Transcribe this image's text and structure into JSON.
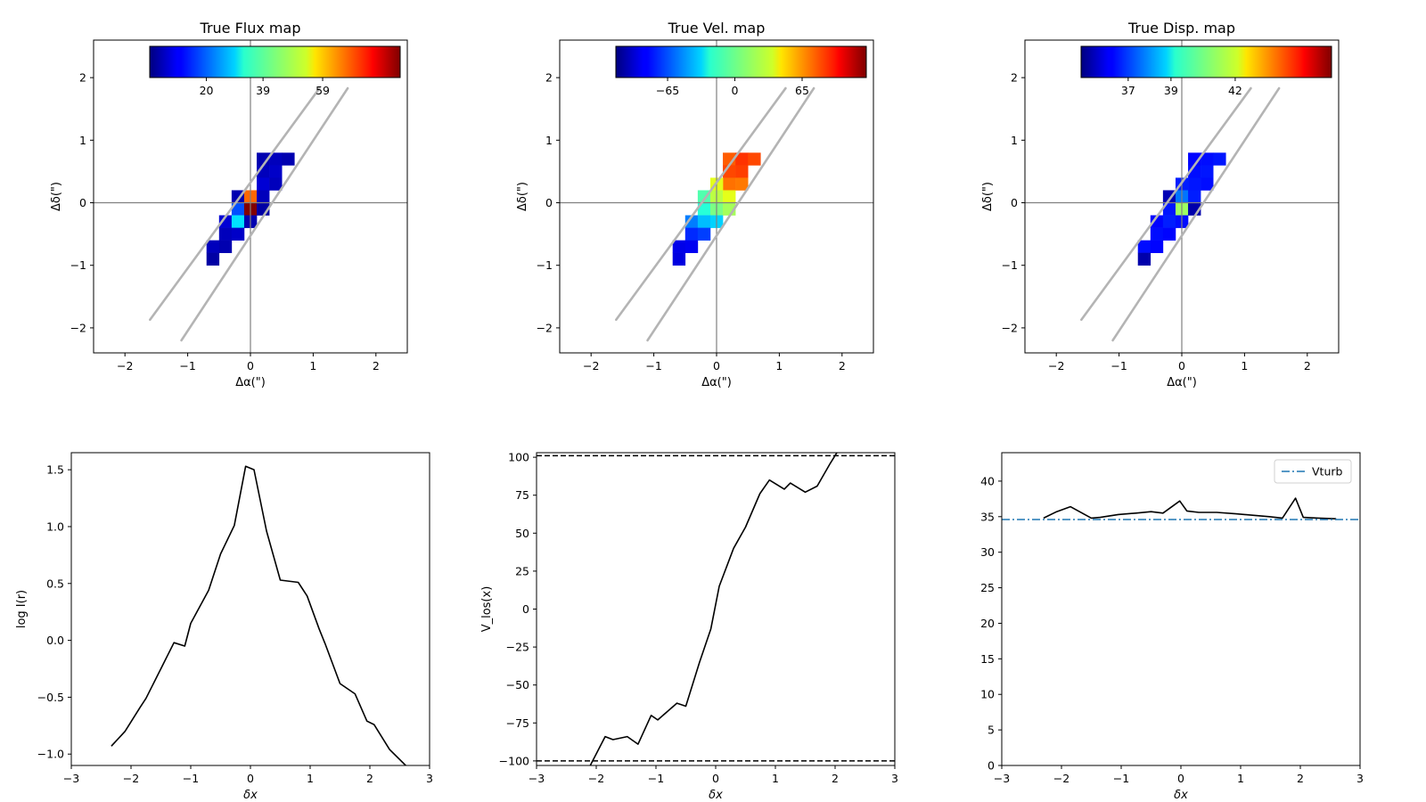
{
  "chart_data": [
    {
      "type": "heatmap",
      "title": "True Flux map",
      "xlabel": "Δα(\")",
      "ylabel": "Δδ(\")",
      "xlim": [
        -2.5,
        2.5
      ],
      "ylim": [
        -2.4,
        2.6
      ],
      "xticks": [
        -2,
        -1,
        0,
        1,
        2
      ],
      "yticks": [
        -2,
        -1,
        0,
        1,
        2
      ],
      "colormap": "jet",
      "colorbar_ticks": [
        {
          "value": 20,
          "label": "20"
        },
        {
          "value": 39,
          "label": "39"
        },
        {
          "value": 59,
          "label": "59"
        }
      ],
      "colorbar_range": [
        1,
        85
      ],
      "pixel_size": 0.2,
      "crosshair": {
        "x": 0,
        "y": 0
      },
      "slit_lines": [
        [
          [
            -1.6,
            -1.87
          ],
          [
            1.1,
            1.83
          ]
        ],
        [
          [
            -1.1,
            -2.2
          ],
          [
            1.55,
            1.83
          ]
        ]
      ],
      "cells": [
        {
          "x": 0.2,
          "y": 0.7,
          "v": 5
        },
        {
          "x": 0.4,
          "y": 0.7,
          "v": 6
        },
        {
          "x": 0.6,
          "y": 0.7,
          "v": 5
        },
        {
          "x": 0.2,
          "y": 0.5,
          "v": 6
        },
        {
          "x": 0.4,
          "y": 0.5,
          "v": 7
        },
        {
          "x": 0.2,
          "y": 0.3,
          "v": 8
        },
        {
          "x": 0.4,
          "y": 0.3,
          "v": 6
        },
        {
          "x": -0.2,
          "y": 0.1,
          "v": 5
        },
        {
          "x": 0.0,
          "y": 0.1,
          "v": 66
        },
        {
          "x": 0.2,
          "y": 0.1,
          "v": 6
        },
        {
          "x": -0.2,
          "y": -0.1,
          "v": 18
        },
        {
          "x": 0.0,
          "y": -0.1,
          "v": 85
        },
        {
          "x": 0.2,
          "y": -0.1,
          "v": 4
        },
        {
          "x": -0.4,
          "y": -0.3,
          "v": 8
        },
        {
          "x": -0.2,
          "y": -0.3,
          "v": 30
        },
        {
          "x": 0.0,
          "y": -0.3,
          "v": 5
        },
        {
          "x": -0.4,
          "y": -0.5,
          "v": 6
        },
        {
          "x": -0.2,
          "y": -0.5,
          "v": 7
        },
        {
          "x": -0.6,
          "y": -0.7,
          "v": 6
        },
        {
          "x": -0.4,
          "y": -0.7,
          "v": 5
        },
        {
          "x": -0.6,
          "y": -0.9,
          "v": 4
        }
      ]
    },
    {
      "type": "heatmap",
      "title": "True Vel. map",
      "xlabel": "Δα(\")",
      "ylabel": "Δδ(\")",
      "xlim": [
        -2.5,
        2.5
      ],
      "ylim": [
        -2.4,
        2.6
      ],
      "xticks": [
        -2,
        -1,
        0,
        1,
        2
      ],
      "yticks": [
        -2,
        -1,
        0,
        1,
        2
      ],
      "colormap": "jet",
      "colorbar_ticks": [
        {
          "value": -65,
          "label": "−65"
        },
        {
          "value": 0,
          "label": "0"
        },
        {
          "value": 65,
          "label": "65"
        }
      ],
      "colorbar_range": [
        -115,
        127
      ],
      "pixel_size": 0.2,
      "crosshair": {
        "x": 0,
        "y": 0
      },
      "slit_lines": [
        [
          [
            -1.6,
            -1.87
          ],
          [
            1.1,
            1.83
          ]
        ],
        [
          [
            -1.1,
            -2.2
          ],
          [
            1.55,
            1.83
          ]
        ]
      ],
      "cells": [
        {
          "x": 0.2,
          "y": 0.7,
          "v": 75
        },
        {
          "x": 0.4,
          "y": 0.7,
          "v": 85
        },
        {
          "x": 0.6,
          "y": 0.7,
          "v": 80
        },
        {
          "x": 0.2,
          "y": 0.5,
          "v": 80
        },
        {
          "x": 0.4,
          "y": 0.5,
          "v": 82
        },
        {
          "x": 0.2,
          "y": 0.3,
          "v": 70
        },
        {
          "x": 0.4,
          "y": 0.3,
          "v": 68
        },
        {
          "x": 0.0,
          "y": 0.3,
          "v": 30
        },
        {
          "x": -0.2,
          "y": 0.1,
          "v": -5
        },
        {
          "x": 0.0,
          "y": 0.1,
          "v": 20
        },
        {
          "x": 0.2,
          "y": 0.1,
          "v": 30
        },
        {
          "x": -0.2,
          "y": -0.1,
          "v": -15
        },
        {
          "x": 0.0,
          "y": -0.1,
          "v": 5
        },
        {
          "x": 0.2,
          "y": -0.1,
          "v": 15
        },
        {
          "x": -0.4,
          "y": -0.3,
          "v": -55
        },
        {
          "x": -0.2,
          "y": -0.3,
          "v": -40
        },
        {
          "x": 0.0,
          "y": -0.3,
          "v": -35
        },
        {
          "x": -0.4,
          "y": -0.5,
          "v": -75
        },
        {
          "x": -0.2,
          "y": -0.5,
          "v": -70
        },
        {
          "x": -0.6,
          "y": -0.7,
          "v": -90
        },
        {
          "x": -0.4,
          "y": -0.7,
          "v": -88
        },
        {
          "x": -0.6,
          "y": -0.9,
          "v": -92
        }
      ]
    },
    {
      "type": "heatmap",
      "title": "True Disp. map",
      "xlabel": "Δα(\")",
      "ylabel": "Δδ(\")",
      "xlim": [
        -2.5,
        2.5
      ],
      "ylim": [
        -2.4,
        2.6
      ],
      "xticks": [
        -2,
        -1,
        0,
        1,
        2
      ],
      "yticks": [
        -2,
        -1,
        0,
        1,
        2
      ],
      "colormap": "jet",
      "colorbar_ticks": [
        {
          "value": 37,
          "label": "37"
        },
        {
          "value": 39,
          "label": "39"
        },
        {
          "value": 42,
          "label": "42"
        }
      ],
      "colorbar_range": [
        34.8,
        46.5
      ],
      "pixel_size": 0.2,
      "crosshair": {
        "x": 0,
        "y": 0
      },
      "slit_lines": [
        [
          [
            -1.6,
            -1.87
          ],
          [
            1.1,
            1.83
          ]
        ],
        [
          [
            -1.1,
            -2.2
          ],
          [
            1.55,
            1.83
          ]
        ]
      ],
      "cells": [
        {
          "x": 0.2,
          "y": 0.7,
          "v": 36.3
        },
        {
          "x": 0.4,
          "y": 0.7,
          "v": 36.4
        },
        {
          "x": 0.6,
          "y": 0.7,
          "v": 36.5
        },
        {
          "x": 0.2,
          "y": 0.5,
          "v": 36.4
        },
        {
          "x": 0.4,
          "y": 0.5,
          "v": 36.5
        },
        {
          "x": 0.2,
          "y": 0.3,
          "v": 36.5
        },
        {
          "x": 0.4,
          "y": 0.3,
          "v": 36.4
        },
        {
          "x": 0.0,
          "y": 0.3,
          "v": 36.6
        },
        {
          "x": -0.2,
          "y": 0.1,
          "v": 35.4
        },
        {
          "x": 0.0,
          "y": 0.1,
          "v": 37.6
        },
        {
          "x": 0.2,
          "y": 0.1,
          "v": 36.6
        },
        {
          "x": -0.2,
          "y": -0.1,
          "v": 36.5
        },
        {
          "x": 0.0,
          "y": -0.1,
          "v": 41.0
        },
        {
          "x": 0.2,
          "y": -0.1,
          "v": 35.3
        },
        {
          "x": -0.4,
          "y": -0.3,
          "v": 36.3
        },
        {
          "x": -0.2,
          "y": -0.3,
          "v": 36.6
        },
        {
          "x": 0.0,
          "y": -0.3,
          "v": 36.4
        },
        {
          "x": -0.4,
          "y": -0.5,
          "v": 36.4
        },
        {
          "x": -0.2,
          "y": -0.5,
          "v": 36.3
        },
        {
          "x": -0.6,
          "y": -0.7,
          "v": 36.4
        },
        {
          "x": -0.4,
          "y": -0.7,
          "v": 36.3
        },
        {
          "x": -0.6,
          "y": -0.9,
          "v": 35.3
        }
      ]
    },
    {
      "type": "line",
      "title": "",
      "xlabel": "δx",
      "ylabel": "log I(r)",
      "xlim": [
        -3,
        3
      ],
      "ylim": [
        -1.1,
        1.65
      ],
      "xticks": [
        -3,
        -2,
        -1,
        0,
        1,
        2,
        3
      ],
      "yticks": [
        -1.0,
        -0.5,
        0.0,
        0.5,
        1.0,
        1.5
      ],
      "ytick_labels": [
        "−1.0",
        "−0.5",
        "0.0",
        "0.5",
        "1.0",
        "1.5"
      ],
      "series": [
        {
          "color": "#000000",
          "x": [
            -2.33,
            -2.1,
            -1.85,
            -1.75,
            -1.5,
            -1.28,
            -1.1,
            -1.0,
            -0.7,
            -0.5,
            -0.27,
            -0.08,
            0.06,
            0.27,
            0.5,
            0.8,
            0.95,
            1.15,
            1.25,
            1.5,
            1.75,
            1.95,
            2.07,
            2.33,
            2.6
          ],
          "y": [
            -0.93,
            -0.8,
            -0.59,
            -0.51,
            -0.25,
            -0.02,
            -0.05,
            0.15,
            0.44,
            0.76,
            1.01,
            1.53,
            1.5,
            0.96,
            0.53,
            0.51,
            0.39,
            0.1,
            -0.03,
            -0.38,
            -0.47,
            -0.71,
            -0.74,
            -0.96,
            -1.1
          ]
        }
      ]
    },
    {
      "type": "line",
      "title": "",
      "xlabel": "δx",
      "ylabel": "V_los(x)",
      "xlim": [
        -3,
        3
      ],
      "ylim": [
        -103,
        103
      ],
      "xticks": [
        -3,
        -2,
        -1,
        0,
        1,
        2,
        3
      ],
      "yticks": [
        -100,
        -75,
        -50,
        -25,
        0,
        25,
        50,
        75,
        100
      ],
      "ytick_labels": [
        "−100",
        "−75",
        "−50",
        "−25",
        "0",
        "25",
        "50",
        "75",
        "100"
      ],
      "hlines": [
        {
          "y": 101,
          "style": "dashed",
          "color": "#000000"
        },
        {
          "y": -100,
          "style": "dashed",
          "color": "#000000"
        }
      ],
      "series": [
        {
          "color": "#000000",
          "x": [
            -2.1,
            -1.85,
            -1.72,
            -1.48,
            -1.3,
            -1.08,
            -0.97,
            -0.65,
            -0.5,
            -0.27,
            -0.08,
            0.06,
            0.3,
            0.5,
            0.74,
            0.9,
            1.15,
            1.25,
            1.5,
            1.7,
            1.92,
            2.03
          ],
          "y": [
            -103,
            -84,
            -86,
            -84,
            -89,
            -70,
            -73,
            -62,
            -64,
            -35,
            -13,
            15,
            40,
            54,
            76,
            85,
            79,
            83,
            77,
            81,
            96,
            103
          ]
        }
      ]
    },
    {
      "type": "line",
      "title": "",
      "xlabel": "δx",
      "ylabel": "",
      "xlim": [
        -3,
        3
      ],
      "ylim": [
        0,
        44
      ],
      "xticks": [
        -3,
        -2,
        -1,
        0,
        1,
        2,
        3
      ],
      "yticks": [
        0,
        5,
        10,
        15,
        20,
        25,
        30,
        35,
        40
      ],
      "legend": {
        "label": "Vturb",
        "position": "top-right"
      },
      "series": [
        {
          "color": "#000000",
          "x": [
            -2.3,
            -2.08,
            -1.85,
            -1.5,
            -1.35,
            -1.05,
            -0.75,
            -0.5,
            -0.3,
            -0.02,
            0.1,
            0.3,
            0.6,
            0.92,
            1.2,
            1.48,
            1.7,
            1.92,
            2.05,
            2.3,
            2.6
          ],
          "y": [
            34.8,
            35.7,
            36.4,
            34.8,
            34.9,
            35.3,
            35.5,
            35.7,
            35.5,
            37.2,
            35.8,
            35.6,
            35.6,
            35.4,
            35.2,
            35.0,
            34.8,
            37.6,
            34.9,
            34.8,
            34.7
          ]
        },
        {
          "name": "Vturb",
          "color": "#1f77b4",
          "style": "dashdot",
          "hline": 34.6
        }
      ]
    }
  ]
}
